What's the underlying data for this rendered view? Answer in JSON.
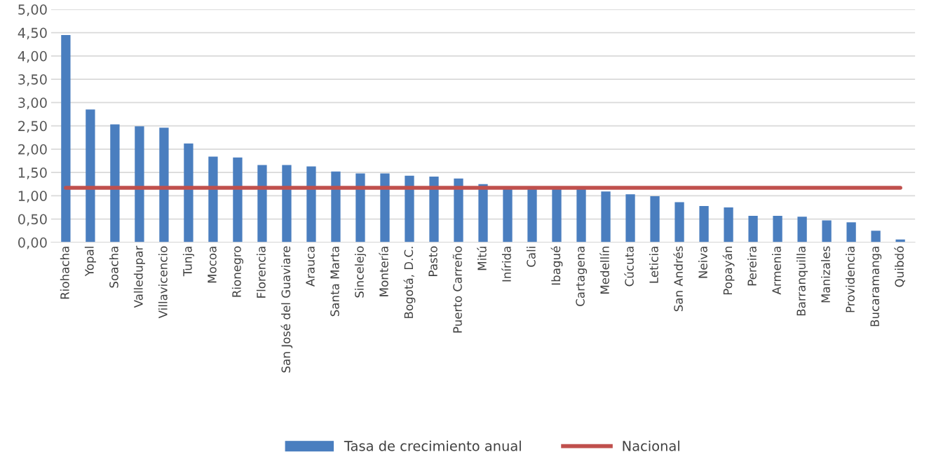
{
  "chart_data": {
    "type": "bar",
    "categories": [
      "Riohacha",
      "Yopal",
      "Soacha",
      "Valledupar",
      "Villavicencio",
      "Tunja",
      "Mocoa",
      "Rionegro",
      "Florencia",
      "San José del Guaviare",
      "Arauca",
      "Santa Marta",
      "Sincelejo",
      "Montería",
      "Bogotá, D.C.",
      "Pasto",
      "Puerto Carreño",
      "Mitú",
      "Inírida",
      "Cali",
      "Ibagué",
      "Cartagena",
      "Medellín",
      "Cúcuta",
      "Leticia",
      "San Andrés",
      "Neiva",
      "Popayán",
      "Pereira",
      "Armenia",
      "Barranquilla",
      "Manizales",
      "Providencia",
      "Bucaramanga",
      "Quibdó"
    ],
    "series": [
      {
        "name": "Tasa de crecimiento anual",
        "color": "#4a7ebf",
        "values": [
          4.45,
          2.85,
          2.53,
          2.49,
          2.46,
          2.12,
          1.84,
          1.82,
          1.66,
          1.66,
          1.63,
          1.52,
          1.48,
          1.48,
          1.43,
          1.41,
          1.37,
          1.25,
          1.17,
          1.17,
          1.17,
          1.17,
          1.09,
          1.03,
          0.99,
          0.86,
          0.78,
          0.75,
          0.57,
          0.57,
          0.55,
          0.47,
          0.43,
          0.25,
          0.06
        ]
      },
      {
        "name": "Nacional",
        "type": "line",
        "color": "#c0504d",
        "values": [
          1.17,
          1.17,
          1.17,
          1.17,
          1.17,
          1.17,
          1.17,
          1.17,
          1.17,
          1.17,
          1.17,
          1.17,
          1.17,
          1.17,
          1.17,
          1.17,
          1.17,
          1.17,
          1.17,
          1.17,
          1.17,
          1.17,
          1.17,
          1.17,
          1.17,
          1.17,
          1.17,
          1.17,
          1.17,
          1.17,
          1.17,
          1.17,
          1.17,
          1.17,
          1.17
        ]
      }
    ],
    "ylim": [
      0,
      5
    ],
    "yticks": [
      {
        "value": 0,
        "label": "0,00"
      },
      {
        "value": 0.5,
        "label": "0,50"
      },
      {
        "value": 1,
        "label": "1,00"
      },
      {
        "value": 1.5,
        "label": "1,50"
      },
      {
        "value": 2,
        "label": "2,00"
      },
      {
        "value": 2.5,
        "label": "2,50"
      },
      {
        "value": 3,
        "label": "3,00"
      },
      {
        "value": 3.5,
        "label": "3,50"
      },
      {
        "value": 4,
        "label": "4,00"
      },
      {
        "value": 4.5,
        "label": "4,50"
      },
      {
        "value": 5,
        "label": "5,00"
      }
    ],
    "grid": "y",
    "legend": "bottom",
    "marker": "none",
    "line_style": "solid"
  }
}
